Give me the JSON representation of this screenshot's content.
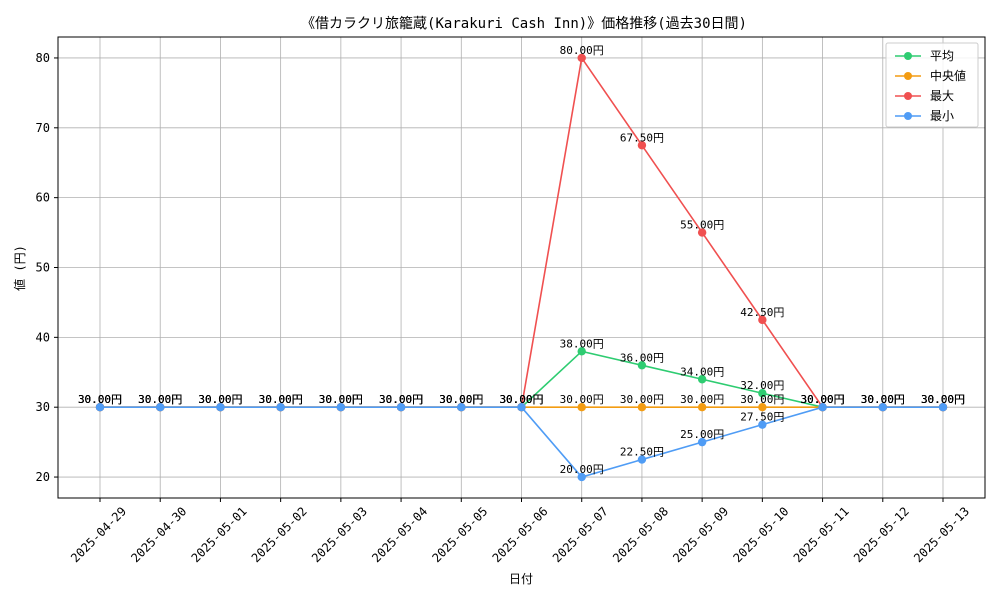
{
  "chart_data": {
    "type": "line",
    "title": "《借カラクリ旅籠蔵(Karakuri Cash Inn)》価格推移(過去30日間)",
    "xlabel": "日付",
    "ylabel": "値 (円)",
    "ylim": [
      17,
      83
    ],
    "yticks": [
      20,
      30,
      40,
      50,
      60,
      70,
      80
    ],
    "grid": true,
    "legend_position": "top-right",
    "categories": [
      "2025-04-29",
      "2025-04-30",
      "2025-05-01",
      "2025-05-02",
      "2025-05-03",
      "2025-05-04",
      "2025-05-05",
      "2025-05-06",
      "2025-05-07",
      "2025-05-08",
      "2025-05-09",
      "2025-05-10",
      "2025-05-11",
      "2025-05-12",
      "2025-05-13"
    ],
    "series": [
      {
        "name": "平均",
        "color": "#2ecc71",
        "values": [
          30,
          30,
          30,
          30,
          30,
          30,
          30,
          30,
          38,
          36,
          34,
          32,
          30,
          30,
          30
        ]
      },
      {
        "name": "中央値",
        "color": "#f39c12",
        "values": [
          30,
          30,
          30,
          30,
          30,
          30,
          30,
          30,
          30,
          30,
          30,
          30,
          30,
          30,
          30
        ]
      },
      {
        "name": "最大",
        "color": "#f05050",
        "values": [
          30,
          30,
          30,
          30,
          30,
          30,
          30,
          30,
          80,
          67.5,
          55,
          42.5,
          30,
          30,
          30
        ]
      },
      {
        "name": "最小",
        "color": "#4f9cf5",
        "values": [
          30,
          30,
          30,
          30,
          30,
          30,
          30,
          30,
          20,
          22.5,
          25,
          27.5,
          30,
          30,
          30
        ]
      }
    ],
    "data_labels": {
      "平均": [
        "30.00円",
        "30.00円",
        "30.00円",
        "30.00円",
        "30.00円",
        "30.00円",
        "30.00円",
        "30.00円",
        "38.00円",
        "36.00円",
        "34.00円",
        "32.00円",
        "30.00円",
        "30.00円",
        "30.00円"
      ],
      "中央値": [
        "30.00円",
        "30.00円",
        "30.00円",
        "30.00円",
        "30.00円",
        "30.00円",
        "30.00円",
        "30.00円",
        "30.00円",
        "30.00円",
        "30.00円",
        "30.00円",
        "30.00円",
        "30.00円",
        "30.00円"
      ],
      "最大": [
        "30.00円",
        "30.00円",
        "30.00円",
        "30.00円",
        "30.00円",
        "30.00円",
        "30.00円",
        "30.00円",
        "80.00円",
        "67.50円",
        "55.00円",
        "42.50円",
        "30.00円",
        "30.00円",
        "30.00円"
      ],
      "最小": [
        "30.00円",
        "30.00円",
        "30.00円",
        "30.00円",
        "30.00円",
        "30.00円",
        "30.00円",
        "30.00円",
        "20.00円",
        "22.50円",
        "25.00円",
        "27.50円",
        "30.00円",
        "30.00円",
        "30.00円"
      ]
    }
  }
}
